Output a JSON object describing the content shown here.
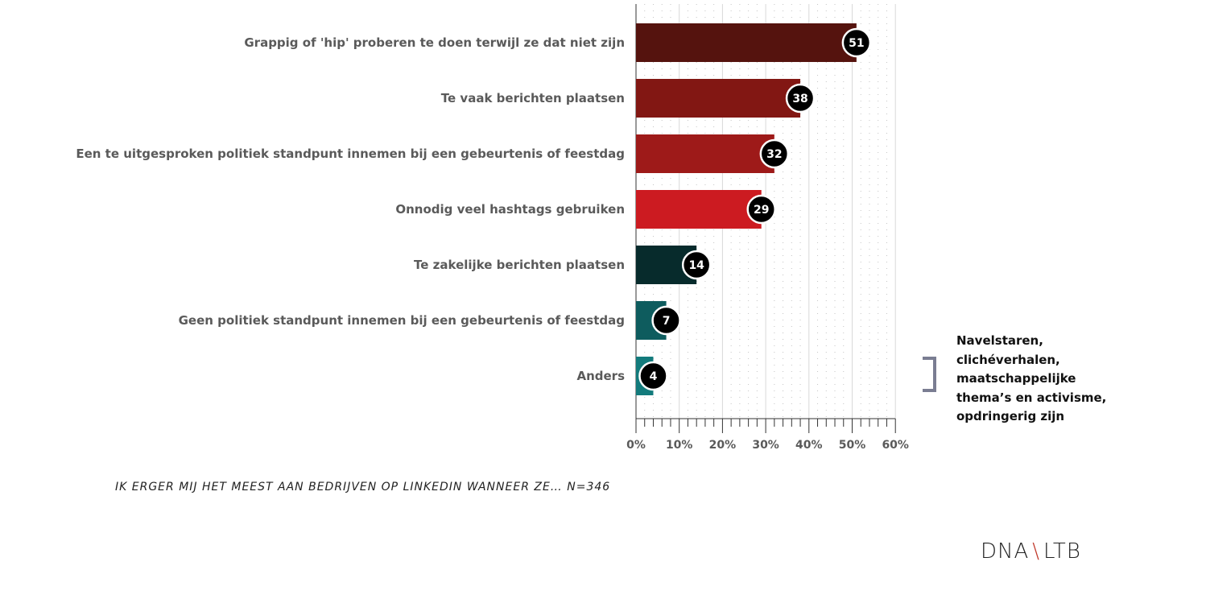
{
  "chart_data": {
    "type": "bar",
    "orientation": "horizontal",
    "categories": [
      "Grappig of 'hip' proberen te doen terwijl ze dat niet zijn",
      "Te vaak berichten plaatsen",
      "Een te uitgesproken politiek standpunt innemen bij een gebeurtenis of feestdag",
      "Onnodig veel hashtags gebruiken",
      "Te zakelijke berichten plaatsen",
      "Geen politiek standpunt innemen bij een gebeurtenis of feestdag",
      "Anders"
    ],
    "values": [
      51,
      38,
      32,
      29,
      14,
      7,
      4
    ],
    "value_labels": [
      "51",
      "38",
      "32",
      "29",
      "14",
      "7",
      "4"
    ],
    "colors": [
      "#55130e",
      "#821713",
      "#9e1a19",
      "#cc1b21",
      "#072b2c",
      "#0e5c5e",
      "#137b7c"
    ],
    "xlim": [
      0,
      60
    ],
    "xticks": [
      "0%",
      "10%",
      "20%",
      "30%",
      "40%",
      "50%",
      "60%"
    ],
    "grid": true
  },
  "caption": "IK ERGER MIJ HET MEEST AAN BEDRIJVEN OP LINKEDIN WANNEER ZE… N=346",
  "annotation": "Navelstaren, clichéverhalen, maatschappelijke thema’s en activisme, opdringerig zijn",
  "logo": {
    "left": "DNA",
    "separator": "\\",
    "right": "LTB"
  },
  "accent_color": "#c0392b"
}
